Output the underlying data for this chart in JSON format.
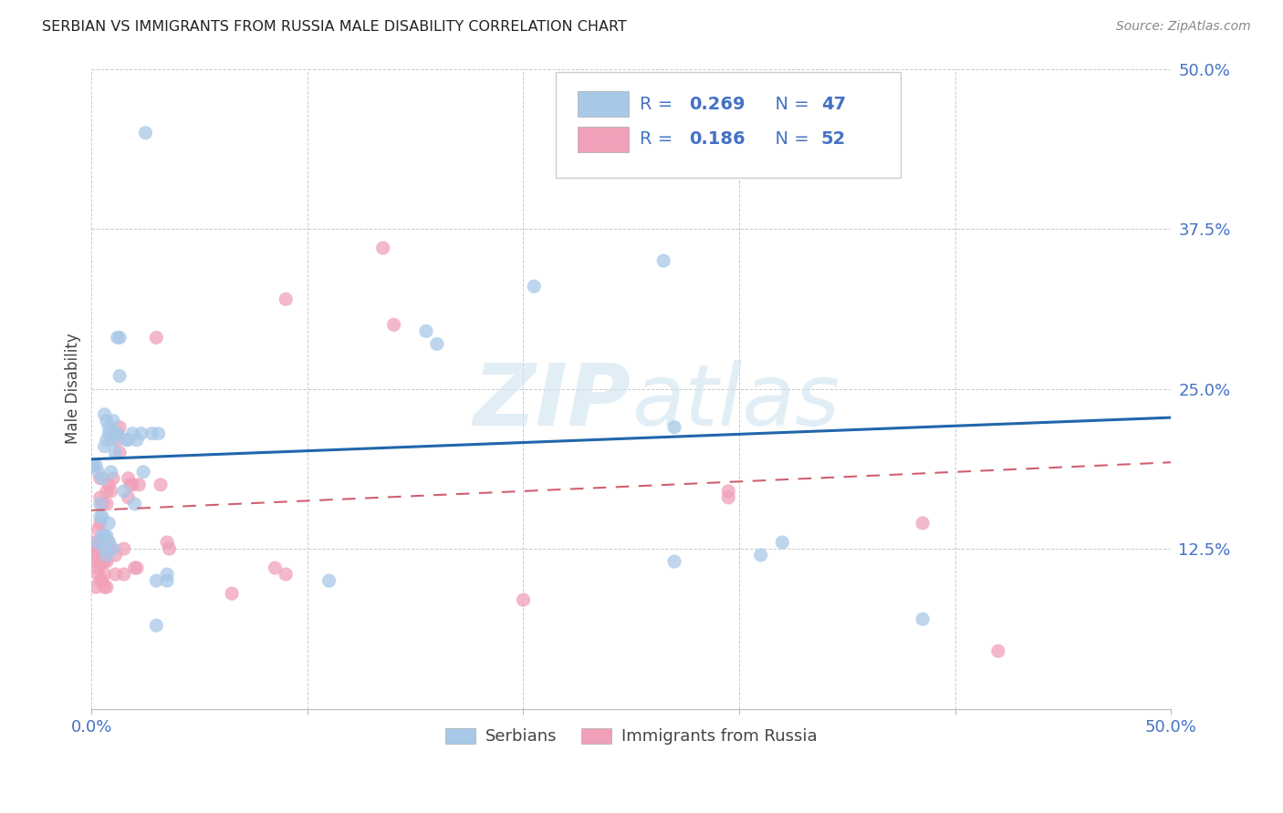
{
  "title": "SERBIAN VS IMMIGRANTS FROM RUSSIA MALE DISABILITY CORRELATION CHART",
  "source": "Source: ZipAtlas.com",
  "ylabel": "Male Disability",
  "watermark": "ZIPatlas",
  "xlim": [
    0.0,
    0.5
  ],
  "ylim": [
    0.0,
    0.5
  ],
  "xtick_vals": [
    0.0,
    0.1,
    0.2,
    0.3,
    0.4,
    0.5
  ],
  "xticklabels": [
    "0.0%",
    "",
    "",
    "",
    "",
    "50.0%"
  ],
  "ytick_vals": [
    0.125,
    0.25,
    0.375,
    0.5
  ],
  "yticklabels": [
    "12.5%",
    "25.0%",
    "37.5%",
    "50.0%"
  ],
  "tick_color": "#4472c4",
  "serbian_dot_color": "#a8c8e8",
  "russia_dot_color": "#f0a0b8",
  "serbian_line_color": "#2166ac",
  "russia_line_color": "#d06070",
  "serbia_intercept": 0.195,
  "serbia_slope": 0.065,
  "russia_intercept": 0.155,
  "russia_slope": 0.075,
  "serbia_points": [
    [
      0.001,
      0.19
    ],
    [
      0.002,
      0.19
    ],
    [
      0.003,
      0.13
    ],
    [
      0.003,
      0.185
    ],
    [
      0.004,
      0.15
    ],
    [
      0.004,
      0.16
    ],
    [
      0.005,
      0.135
    ],
    [
      0.005,
      0.15
    ],
    [
      0.005,
      0.18
    ],
    [
      0.006,
      0.125
    ],
    [
      0.006,
      0.135
    ],
    [
      0.006,
      0.205
    ],
    [
      0.006,
      0.23
    ],
    [
      0.007,
      0.12
    ],
    [
      0.007,
      0.135
    ],
    [
      0.007,
      0.21
    ],
    [
      0.007,
      0.225
    ],
    [
      0.008,
      0.13
    ],
    [
      0.008,
      0.145
    ],
    [
      0.008,
      0.215
    ],
    [
      0.008,
      0.22
    ],
    [
      0.009,
      0.185
    ],
    [
      0.009,
      0.215
    ],
    [
      0.01,
      0.125
    ],
    [
      0.01,
      0.21
    ],
    [
      0.01,
      0.225
    ],
    [
      0.011,
      0.2
    ],
    [
      0.011,
      0.215
    ],
    [
      0.012,
      0.215
    ],
    [
      0.012,
      0.29
    ],
    [
      0.013,
      0.26
    ],
    [
      0.013,
      0.29
    ],
    [
      0.015,
      0.17
    ],
    [
      0.016,
      0.21
    ],
    [
      0.017,
      0.21
    ],
    [
      0.019,
      0.215
    ],
    [
      0.02,
      0.16
    ],
    [
      0.021,
      0.21
    ],
    [
      0.023,
      0.215
    ],
    [
      0.024,
      0.185
    ],
    [
      0.028,
      0.215
    ],
    [
      0.03,
      0.065
    ],
    [
      0.03,
      0.1
    ],
    [
      0.031,
      0.215
    ],
    [
      0.035,
      0.1
    ],
    [
      0.035,
      0.105
    ],
    [
      0.025,
      0.45
    ],
    [
      0.11,
      0.1
    ],
    [
      0.155,
      0.295
    ],
    [
      0.16,
      0.285
    ],
    [
      0.205,
      0.33
    ],
    [
      0.265,
      0.35
    ],
    [
      0.27,
      0.22
    ],
    [
      0.27,
      0.115
    ],
    [
      0.31,
      0.12
    ],
    [
      0.32,
      0.13
    ],
    [
      0.385,
      0.07
    ]
  ],
  "russia_points": [
    [
      0.001,
      0.125
    ],
    [
      0.001,
      0.13
    ],
    [
      0.002,
      0.095
    ],
    [
      0.002,
      0.115
    ],
    [
      0.002,
      0.12
    ],
    [
      0.003,
      0.105
    ],
    [
      0.003,
      0.11
    ],
    [
      0.003,
      0.13
    ],
    [
      0.003,
      0.14
    ],
    [
      0.004,
      0.1
    ],
    [
      0.004,
      0.115
    ],
    [
      0.004,
      0.125
    ],
    [
      0.004,
      0.145
    ],
    [
      0.004,
      0.165
    ],
    [
      0.004,
      0.18
    ],
    [
      0.005,
      0.1
    ],
    [
      0.005,
      0.115
    ],
    [
      0.005,
      0.125
    ],
    [
      0.005,
      0.16
    ],
    [
      0.006,
      0.095
    ],
    [
      0.006,
      0.105
    ],
    [
      0.006,
      0.115
    ],
    [
      0.006,
      0.13
    ],
    [
      0.007,
      0.095
    ],
    [
      0.007,
      0.115
    ],
    [
      0.007,
      0.16
    ],
    [
      0.007,
      0.17
    ],
    [
      0.008,
      0.125
    ],
    [
      0.008,
      0.13
    ],
    [
      0.008,
      0.175
    ],
    [
      0.009,
      0.125
    ],
    [
      0.009,
      0.17
    ],
    [
      0.01,
      0.18
    ],
    [
      0.011,
      0.105
    ],
    [
      0.011,
      0.12
    ],
    [
      0.012,
      0.21
    ],
    [
      0.012,
      0.215
    ],
    [
      0.013,
      0.2
    ],
    [
      0.013,
      0.22
    ],
    [
      0.015,
      0.105
    ],
    [
      0.015,
      0.125
    ],
    [
      0.017,
      0.165
    ],
    [
      0.017,
      0.18
    ],
    [
      0.018,
      0.175
    ],
    [
      0.019,
      0.175
    ],
    [
      0.02,
      0.11
    ],
    [
      0.021,
      0.11
    ],
    [
      0.022,
      0.175
    ],
    [
      0.03,
      0.29
    ],
    [
      0.032,
      0.175
    ],
    [
      0.035,
      0.13
    ],
    [
      0.036,
      0.125
    ],
    [
      0.065,
      0.09
    ],
    [
      0.085,
      0.11
    ],
    [
      0.09,
      0.105
    ],
    [
      0.09,
      0.32
    ],
    [
      0.135,
      0.36
    ],
    [
      0.14,
      0.3
    ],
    [
      0.2,
      0.085
    ],
    [
      0.295,
      0.165
    ],
    [
      0.295,
      0.17
    ],
    [
      0.42,
      0.045
    ],
    [
      0.385,
      0.145
    ]
  ]
}
